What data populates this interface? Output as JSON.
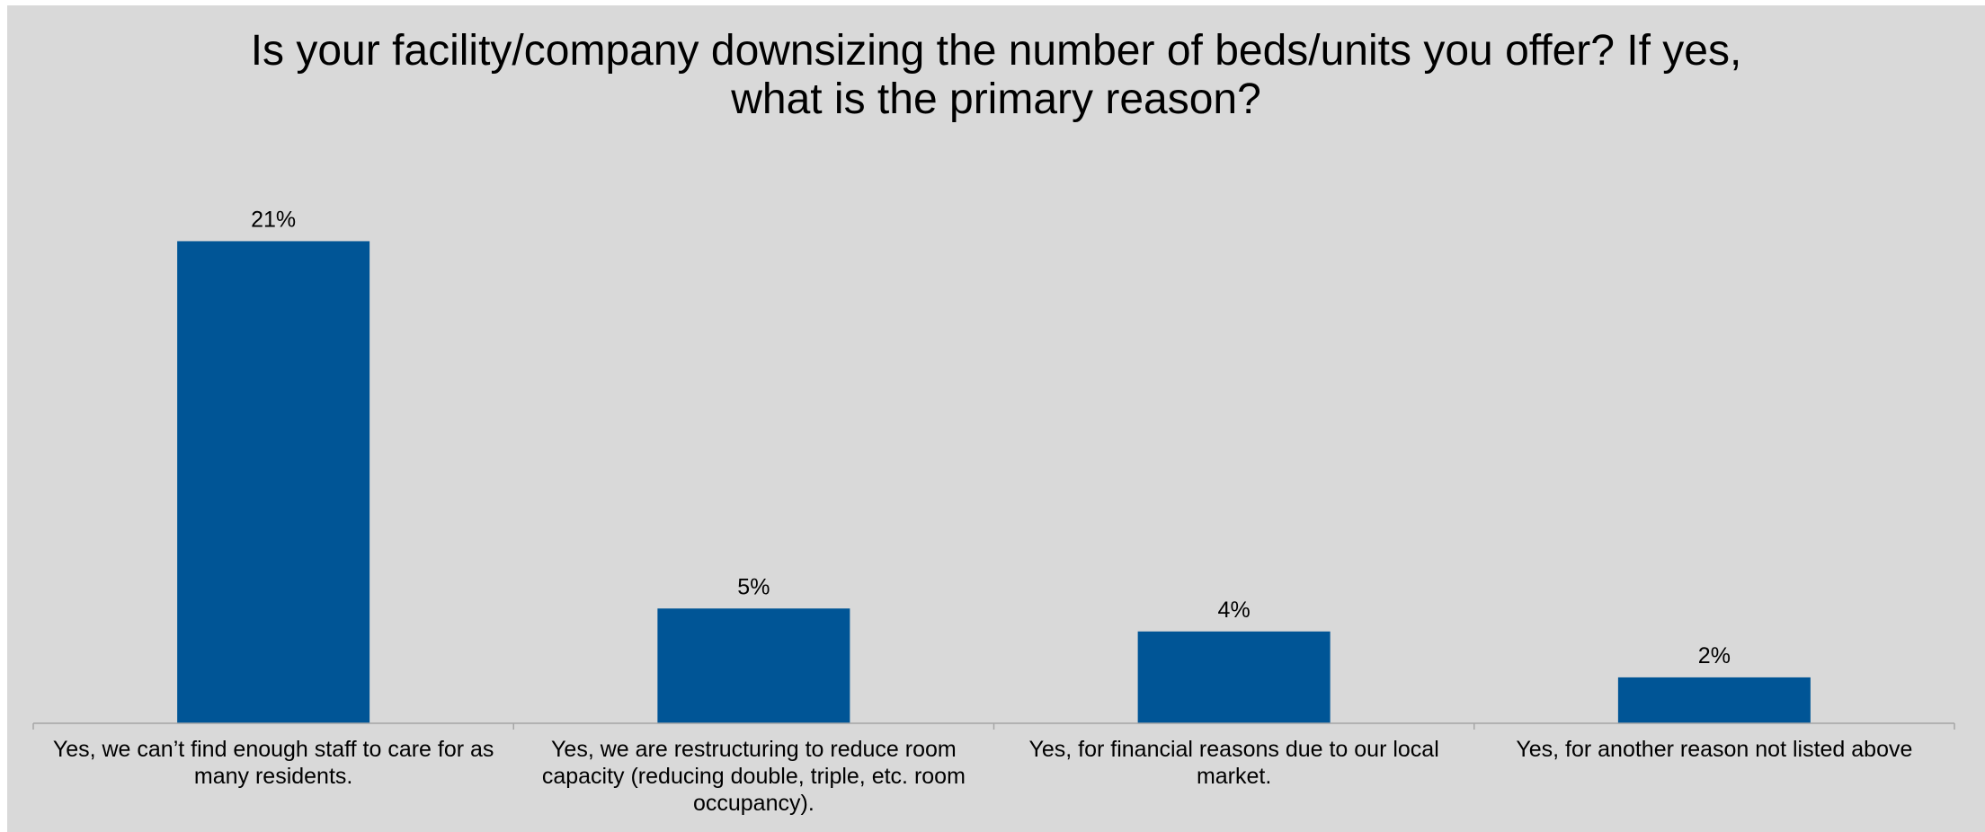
{
  "chart_data": {
    "type": "bar",
    "title_lines": [
      "Is your facility/company downsizing the number of beds/units you offer? If yes,",
      "what is the primary reason?"
    ],
    "categories": [
      [
        "Yes, we can’t find enough staff to care for as",
        "many residents."
      ],
      [
        "Yes, we are restructuring to reduce room",
        "capacity (reducing double, triple, etc. room",
        "occupancy)."
      ],
      [
        "Yes, for financial reasons due to our local",
        "market."
      ],
      [
        "Yes, for another reason not listed above"
      ]
    ],
    "values": [
      21,
      5,
      4,
      2
    ],
    "data_labels": [
      "21%",
      "5%",
      "4%",
      "2%"
    ],
    "ylim": [
      0,
      25
    ],
    "grid": false,
    "legend": "none",
    "colors": {
      "bar": "#005596",
      "background": "#d9d9d9",
      "axis": "#a6a6a6"
    }
  }
}
